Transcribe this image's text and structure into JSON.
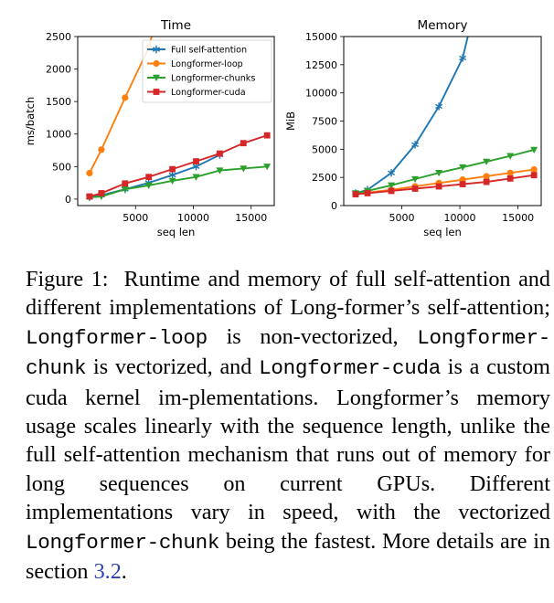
{
  "chart_data": [
    {
      "type": "line",
      "title": "Time",
      "xlabel": "seq len",
      "ylabel": "ms/batch",
      "xlim": [
        0,
        17000
      ],
      "ylim": [
        -100,
        2500
      ],
      "xticks": [
        5000,
        10000,
        15000
      ],
      "yticks": [
        0,
        500,
        1000,
        1500,
        2000,
        2500
      ],
      "legend": "top-right",
      "series": [
        {
          "name": "Full self-attention",
          "color": "#1f77b4",
          "marker": "star",
          "x": [
            1024,
            2048,
            4096,
            6144,
            8192,
            10240,
            12288
          ],
          "y": [
            30,
            60,
            150,
            250,
            370,
            500,
            680
          ]
        },
        {
          "name": "Longformer-loop",
          "color": "#ff7f0e",
          "marker": "circle",
          "x": [
            1024,
            2048,
            4096,
            6144
          ],
          "y": [
            400,
            760,
            1560,
            2330
          ]
        },
        {
          "name": "Longformer-chunks",
          "color": "#2ca02c",
          "marker": "triangle-down",
          "x": [
            1024,
            2048,
            4096,
            6144,
            8192,
            10240,
            12288,
            14336,
            16384
          ],
          "y": [
            25,
            40,
            150,
            210,
            280,
            340,
            440,
            470,
            500
          ]
        },
        {
          "name": "Longformer-cuda",
          "color": "#d62728",
          "marker": "square",
          "x": [
            1024,
            2048,
            4096,
            6144,
            8192,
            10240,
            12288,
            14336,
            16384
          ],
          "y": [
            40,
            90,
            240,
            340,
            460,
            580,
            700,
            860,
            980
          ]
        }
      ]
    },
    {
      "type": "line",
      "title": "Memory",
      "xlabel": "seq len",
      "ylabel": "MiB",
      "xlim": [
        0,
        17000
      ],
      "ylim": [
        0,
        15000
      ],
      "xticks": [
        5000,
        10000,
        15000
      ],
      "yticks": [
        0,
        2500,
        5000,
        7500,
        10000,
        12500,
        15000
      ],
      "series": [
        {
          "name": "Full self-attention",
          "color": "#1f77b4",
          "marker": "star",
          "x": [
            1024,
            2048,
            4096,
            6144,
            8192,
            10240
          ],
          "y": [
            1100,
            1400,
            2900,
            5400,
            8800,
            13100
          ]
        },
        {
          "name": "Longformer-loop",
          "color": "#ff7f0e",
          "marker": "circle",
          "x": [
            1024,
            2048,
            4096,
            6144,
            8192,
            10240,
            12288,
            14336,
            16384
          ],
          "y": [
            1050,
            1150,
            1400,
            1700,
            2000,
            2300,
            2600,
            2900,
            3200
          ]
        },
        {
          "name": "Longformer-chunks",
          "color": "#2ca02c",
          "marker": "triangle-down",
          "x": [
            1024,
            2048,
            4096,
            6144,
            8192,
            10240,
            12288,
            14336,
            16384
          ],
          "y": [
            1100,
            1300,
            1800,
            2350,
            2900,
            3400,
            3900,
            4400,
            4950
          ]
        },
        {
          "name": "Longformer-cuda",
          "color": "#d62728",
          "marker": "square",
          "x": [
            1024,
            2048,
            4096,
            6144,
            8192,
            10240,
            12288,
            14336,
            16384
          ],
          "y": [
            1000,
            1100,
            1300,
            1500,
            1700,
            1900,
            2100,
            2400,
            2700
          ]
        }
      ]
    }
  ],
  "caption": {
    "figure_label": "Figure 1:",
    "t1": "Runtime and memory of full self-attention and different implementations of Long-former’s self-attention;",
    "code_loop": "Longformer-loop",
    "t2": "is non-vectorized,",
    "code_chunk": "Longformer-chunk",
    "t3": "is vectorized, and",
    "code_cuda": "Longformer-cuda",
    "t4": "is a custom cuda kernel im-plementations. Longformer’s memory usage scales linearly with the sequence length, unlike the full self-attention mechanism that runs out of memory for long sequences on current GPUs. Different implementations vary in speed, with the vectorized",
    "code_chunk2": "Longformer-chunk",
    "t5": "being the fastest. More details are in section",
    "section_ref": "3.2",
    "t6": "."
  }
}
